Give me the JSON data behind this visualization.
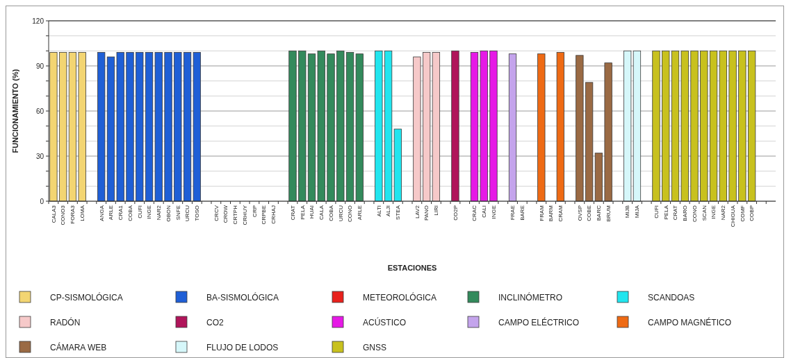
{
  "chart_data": {
    "type": "bar",
    "xlabel": "ESTACIONES",
    "ylabel": "FUNCIONAMIENTO (%)",
    "ylim": [
      0,
      120
    ],
    "yticks": [
      0,
      {
        "value": 10,
        "label": null
      },
      {
        "value": 20,
        "label": null
      },
      30,
      {
        "value": 40,
        "label": null
      },
      {
        "value": 50,
        "label": null
      },
      60,
      {
        "value": 70,
        "label": null
      },
      {
        "value": 80,
        "label": null
      },
      90,
      {
        "value": 100,
        "label": null
      },
      {
        "value": 110,
        "label": null
      },
      120
    ],
    "grid": "y",
    "legend": "bottom",
    "categories": [
      "CALA3",
      "CONO3",
      "FORA3",
      "LOMA",
      null,
      "ANGA",
      "ARLE",
      "CRA1",
      "COBA",
      "CUFI",
      "INGE",
      "NAR2",
      "OBON",
      "SNFE",
      "URCU",
      "TOSO",
      null,
      "CRCV",
      "CROW",
      "CRTPH",
      "CRHUY",
      "CRP",
      "CRPBE",
      "CRHAJ",
      null,
      "CRAT",
      "PELA",
      "HUAI",
      "CALA",
      "COBA",
      "URCU",
      "CONO",
      "ARLE",
      null,
      "ALTI",
      "ALJI",
      "STEA",
      null,
      "LAV2",
      "PANO",
      "LIRI",
      null,
      "CO2P",
      null,
      "CRAC",
      "CALI",
      "INGE",
      null,
      "FRAE",
      "BARE",
      null,
      "FRAM",
      "BARM",
      "CRAM",
      null,
      "OVSP",
      "COBE",
      "BARC",
      "BRUM",
      null,
      "MIJB",
      "MIJA",
      null,
      "CUFI",
      "PELA",
      "CRAT",
      "BARO",
      "CONO",
      "SCAN",
      "INGE",
      "NAR2",
      "CHIGUA",
      "COMF",
      "COBP",
      null,
      null
    ],
    "series": [
      {
        "name": "CP-SISMOLÓGICA",
        "color": "#f3d572",
        "values": [
          99,
          99,
          99,
          99,
          null,
          null,
          null,
          null,
          null,
          null,
          null,
          null,
          null,
          null,
          null,
          null,
          null,
          null,
          null,
          null,
          null,
          null,
          null,
          null,
          null,
          null,
          null,
          null,
          null,
          null,
          null,
          null,
          null,
          null,
          null,
          null,
          null,
          null,
          null,
          null,
          null,
          null,
          null,
          null,
          null,
          null,
          null,
          null,
          null,
          null,
          null,
          null,
          null,
          null,
          null,
          null,
          null,
          null,
          null,
          null,
          null,
          null,
          null,
          null,
          null,
          null,
          null,
          null,
          null,
          null,
          null,
          null,
          null,
          null,
          null,
          null
        ]
      },
      {
        "name": "BA-SISMOLÓGICA",
        "color": "#1f5fd6",
        "values": [
          null,
          null,
          null,
          null,
          null,
          99,
          96,
          99,
          99,
          99,
          99,
          99,
          99,
          99,
          99,
          99,
          null,
          null,
          null,
          null,
          null,
          null,
          null,
          null,
          null,
          null,
          null,
          null,
          null,
          null,
          null,
          null,
          null,
          null,
          null,
          null,
          null,
          null,
          null,
          null,
          null,
          null,
          null,
          null,
          null,
          null,
          null,
          null,
          null,
          null,
          null,
          null,
          null,
          null,
          null,
          null,
          null,
          null,
          null,
          null,
          null,
          null,
          null,
          null,
          null,
          null,
          null,
          null,
          null,
          null,
          null,
          null,
          null,
          null,
          null,
          null
        ]
      },
      {
        "name": "METEOROLÓGICA",
        "color": "#e8211c",
        "values": [
          null,
          null,
          null,
          null,
          null,
          null,
          null,
          null,
          null,
          null,
          null,
          null,
          null,
          null,
          null,
          null,
          null,
          null,
          null,
          null,
          null,
          null,
          null,
          null,
          null,
          null,
          null,
          null,
          null,
          null,
          null,
          null,
          null,
          null,
          null,
          null,
          null,
          null,
          null,
          null,
          null,
          null,
          null,
          null,
          null,
          null,
          null,
          null,
          null,
          null,
          null,
          null,
          null,
          null,
          null,
          null,
          null,
          null,
          null,
          null,
          null,
          null,
          null,
          null,
          null,
          null,
          null,
          null,
          null,
          null,
          null,
          null,
          null,
          null,
          null,
          null
        ]
      },
      {
        "name": "INCLINÓMETRO",
        "color": "#338a5c",
        "values": [
          null,
          null,
          null,
          null,
          null,
          null,
          null,
          null,
          null,
          null,
          null,
          null,
          null,
          null,
          null,
          null,
          null,
          null,
          null,
          null,
          null,
          null,
          null,
          null,
          null,
          100,
          100,
          98,
          100,
          98,
          100,
          99,
          98,
          null,
          null,
          null,
          null,
          null,
          null,
          null,
          null,
          null,
          null,
          null,
          null,
          null,
          null,
          null,
          null,
          null,
          null,
          null,
          null,
          null,
          null,
          null,
          null,
          null,
          null,
          null,
          null,
          null,
          null,
          null,
          null,
          null,
          null,
          null,
          null,
          null,
          null,
          null,
          null,
          null,
          null,
          null
        ]
      },
      {
        "name": "SCANDOAS",
        "color": "#22e5ee",
        "values": [
          null,
          null,
          null,
          null,
          null,
          null,
          null,
          null,
          null,
          null,
          null,
          null,
          null,
          null,
          null,
          null,
          null,
          null,
          null,
          null,
          null,
          null,
          null,
          null,
          null,
          null,
          null,
          null,
          null,
          null,
          null,
          null,
          null,
          null,
          100,
          100,
          48,
          null,
          null,
          null,
          null,
          null,
          null,
          null,
          null,
          null,
          null,
          null,
          null,
          null,
          null,
          null,
          null,
          null,
          null,
          null,
          null,
          null,
          null,
          null,
          null,
          null,
          null,
          null,
          null,
          null,
          null,
          null,
          null,
          null,
          null,
          null,
          null,
          null,
          null,
          null
        ]
      },
      {
        "name": "RADÓN",
        "color": "#f6c9c9",
        "values": [
          null,
          null,
          null,
          null,
          null,
          null,
          null,
          null,
          null,
          null,
          null,
          null,
          null,
          null,
          null,
          null,
          null,
          null,
          null,
          null,
          null,
          null,
          null,
          null,
          null,
          null,
          null,
          null,
          null,
          null,
          null,
          null,
          null,
          null,
          null,
          null,
          null,
          null,
          96,
          99,
          99,
          null,
          null,
          null,
          null,
          null,
          null,
          null,
          null,
          null,
          null,
          null,
          null,
          null,
          null,
          null,
          null,
          null,
          null,
          null,
          null,
          null,
          null,
          null,
          null,
          null,
          null,
          null,
          null,
          null,
          null,
          null,
          null,
          null,
          null,
          null
        ]
      },
      {
        "name": "CO2",
        "color": "#b0155a",
        "values": [
          null,
          null,
          null,
          null,
          null,
          null,
          null,
          null,
          null,
          null,
          null,
          null,
          null,
          null,
          null,
          null,
          null,
          null,
          null,
          null,
          null,
          null,
          null,
          null,
          null,
          null,
          null,
          null,
          null,
          null,
          null,
          null,
          null,
          null,
          null,
          null,
          null,
          null,
          null,
          null,
          null,
          null,
          100,
          null,
          null,
          null,
          null,
          null,
          null,
          null,
          null,
          null,
          null,
          null,
          null,
          null,
          null,
          null,
          null,
          null,
          null,
          null,
          null,
          null,
          null,
          null,
          null,
          null,
          null,
          null,
          null,
          null,
          null,
          null,
          null,
          null
        ]
      },
      {
        "name": "ACÚSTICO",
        "color": "#e619e6",
        "values": [
          null,
          null,
          null,
          null,
          null,
          null,
          null,
          null,
          null,
          null,
          null,
          null,
          null,
          null,
          null,
          null,
          null,
          null,
          null,
          null,
          null,
          null,
          null,
          null,
          null,
          null,
          null,
          null,
          null,
          null,
          null,
          null,
          null,
          null,
          null,
          null,
          null,
          null,
          null,
          null,
          null,
          null,
          null,
          null,
          99,
          100,
          100,
          null,
          null,
          null,
          null,
          null,
          null,
          null,
          null,
          null,
          null,
          null,
          null,
          null,
          null,
          null,
          null,
          null,
          null,
          null,
          null,
          null,
          null,
          null,
          null,
          null,
          null,
          null,
          null,
          null
        ]
      },
      {
        "name": "CAMPO ELÉCTRICO",
        "color": "#c4a4ec",
        "values": [
          null,
          null,
          null,
          null,
          null,
          null,
          null,
          null,
          null,
          null,
          null,
          null,
          null,
          null,
          null,
          null,
          null,
          null,
          null,
          null,
          null,
          null,
          null,
          null,
          null,
          null,
          null,
          null,
          null,
          null,
          null,
          null,
          null,
          null,
          null,
          null,
          null,
          null,
          null,
          null,
          null,
          null,
          null,
          null,
          null,
          null,
          null,
          null,
          98,
          null,
          null,
          null,
          null,
          null,
          null,
          null,
          null,
          null,
          null,
          null,
          null,
          null,
          null,
          null,
          null,
          null,
          null,
          null,
          null,
          null,
          null,
          null,
          null,
          null,
          null,
          null
        ]
      },
      {
        "name": "CAMPO MAGNÉTICO",
        "color": "#ee6a14",
        "values": [
          null,
          null,
          null,
          null,
          null,
          null,
          null,
          null,
          null,
          null,
          null,
          null,
          null,
          null,
          null,
          null,
          null,
          null,
          null,
          null,
          null,
          null,
          null,
          null,
          null,
          null,
          null,
          null,
          null,
          null,
          null,
          null,
          null,
          null,
          null,
          null,
          null,
          null,
          null,
          null,
          null,
          null,
          null,
          null,
          null,
          null,
          null,
          null,
          null,
          null,
          null,
          98,
          null,
          99,
          null,
          null,
          null,
          null,
          null,
          null,
          null,
          null,
          null,
          null,
          null,
          null,
          null,
          null,
          null,
          null,
          null,
          null,
          null,
          null,
          null,
          null
        ]
      },
      {
        "name": "CÁMARA WEB",
        "color": "#9a6a44",
        "values": [
          null,
          null,
          null,
          null,
          null,
          null,
          null,
          null,
          null,
          null,
          null,
          null,
          null,
          null,
          null,
          null,
          null,
          null,
          null,
          null,
          null,
          null,
          null,
          null,
          null,
          null,
          null,
          null,
          null,
          null,
          null,
          null,
          null,
          null,
          null,
          null,
          null,
          null,
          null,
          null,
          null,
          null,
          null,
          null,
          null,
          null,
          null,
          null,
          null,
          null,
          null,
          null,
          null,
          null,
          null,
          97,
          79,
          32,
          92,
          null,
          null,
          null,
          null,
          null,
          null,
          null,
          null,
          null,
          null,
          null,
          null,
          null,
          null,
          null,
          null,
          null
        ]
      },
      {
        "name": "FLUJO DE LODOS",
        "color": "#d6f7fa",
        "values": [
          null,
          null,
          null,
          null,
          null,
          null,
          null,
          null,
          null,
          null,
          null,
          null,
          null,
          null,
          null,
          null,
          null,
          null,
          null,
          null,
          null,
          null,
          null,
          null,
          null,
          null,
          null,
          null,
          null,
          null,
          null,
          null,
          null,
          null,
          null,
          null,
          null,
          null,
          null,
          null,
          null,
          null,
          null,
          null,
          null,
          null,
          null,
          null,
          null,
          null,
          null,
          null,
          null,
          null,
          null,
          null,
          null,
          null,
          null,
          null,
          100,
          100,
          null,
          null,
          null,
          null,
          null,
          null,
          null,
          null,
          null,
          null,
          null,
          null,
          null,
          null
        ]
      },
      {
        "name": "GNSS",
        "color": "#c8c11e",
        "values": [
          null,
          null,
          null,
          null,
          null,
          null,
          null,
          null,
          null,
          null,
          null,
          null,
          null,
          null,
          null,
          null,
          null,
          null,
          null,
          null,
          null,
          null,
          null,
          null,
          null,
          null,
          null,
          null,
          null,
          null,
          null,
          null,
          null,
          null,
          null,
          null,
          null,
          null,
          null,
          null,
          null,
          null,
          null,
          null,
          null,
          null,
          null,
          null,
          null,
          null,
          null,
          null,
          null,
          null,
          null,
          null,
          null,
          null,
          null,
          null,
          null,
          null,
          null,
          100,
          100,
          100,
          100,
          100,
          100,
          100,
          100,
          100,
          100,
          100,
          null,
          null
        ]
      }
    ]
  }
}
